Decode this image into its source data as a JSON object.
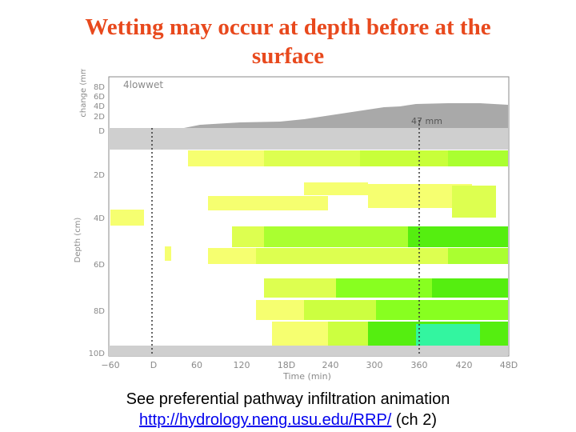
{
  "slide": {
    "title_line1": "Wetting may occur at depth before at the",
    "title_line2": "surface"
  },
  "figure": {
    "panel_label": "4lowwet",
    "annotation": "47 mm",
    "top_axis_label": "change (mm)",
    "top_ticks": [
      "8D",
      "6D",
      "4D",
      "2D",
      "D"
    ],
    "depth_axis_label": "Depth (cm)",
    "depth_ticks": [
      "2D",
      "4D",
      "6D",
      "8D",
      "10D"
    ],
    "time_axis_label": "Time (min)",
    "time_ticks": [
      "−60",
      "D",
      "60",
      "120",
      "18D",
      "240",
      "300",
      "360",
      "420",
      "48D"
    ],
    "colors": {
      "change_fill": "#a9a9a9",
      "gray_band": "#cfcfcf",
      "yellow": "#f6ff70",
      "green": "#33ee00",
      "cyan": "#33f5a0",
      "axis": "#8a8a8a"
    }
  },
  "caption": {
    "line1": "See preferential pathway infiltration animation",
    "link": "http://hydrology.neng.usu.edu/RRP/",
    "suffix": " (ch 2)"
  }
}
